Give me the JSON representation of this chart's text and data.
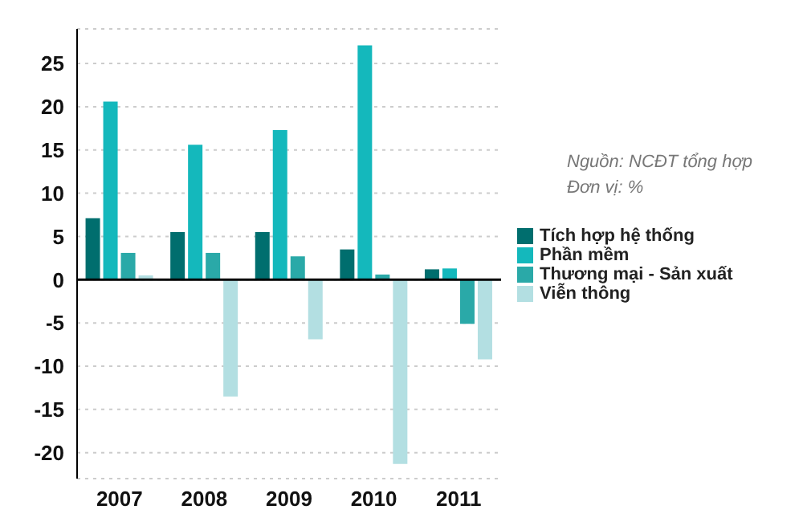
{
  "chart_data": {
    "type": "bar",
    "categories": [
      "2007",
      "2008",
      "2009",
      "2010",
      "2011"
    ],
    "series": [
      {
        "name": "Tích hợp hệ thống",
        "color": "#006e6e",
        "values": [
          7.1,
          5.5,
          5.5,
          3.5,
          1.2
        ]
      },
      {
        "name": "Phần mềm",
        "color": "#14b8bc",
        "values": [
          20.6,
          15.6,
          17.3,
          27.1,
          1.3
        ]
      },
      {
        "name": "Thương mại - Sản xuất",
        "color": "#2aa9a8",
        "values": [
          3.1,
          3.1,
          2.7,
          0.6,
          -5.1
        ]
      },
      {
        "name": "Viễn thông",
        "color": "#b3dfe2",
        "values": [
          0.5,
          -13.5,
          -6.9,
          -21.3,
          -9.2
        ]
      }
    ],
    "ylim": [
      -23,
      29
    ],
    "yticks": [
      -20,
      -15,
      -10,
      -5,
      0,
      5,
      10,
      15,
      20,
      25
    ],
    "grid": "y",
    "legend": "right",
    "annotations": [
      "Nguồn: NCĐT tổng hợp",
      "Đơn vị: %"
    ]
  }
}
